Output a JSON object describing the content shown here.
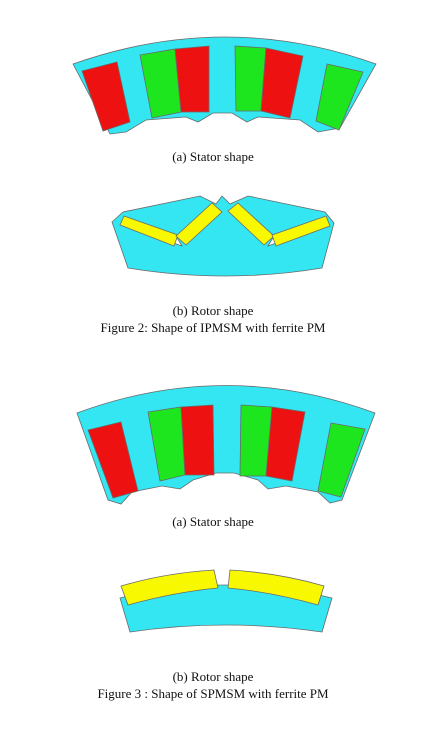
{
  "figure2": {
    "stator_caption": "(a)   Stator shape",
    "rotor_caption": "(b)   Rotor shape",
    "title": "Figure 2: Shape of IPMSM with ferrite PM"
  },
  "figure3": {
    "stator_caption": "(a)   Stator shape",
    "rotor_caption": "(b)   Rotor shape",
    "title": "Figure 3 : Shape of SPMSM with ferrite PM"
  },
  "colors": {
    "core": "#33e6f2",
    "coil_red": "#ee1111",
    "coil_green": "#1ee61e",
    "magnet": "#f8f800",
    "outline": "#6a6a6a"
  }
}
